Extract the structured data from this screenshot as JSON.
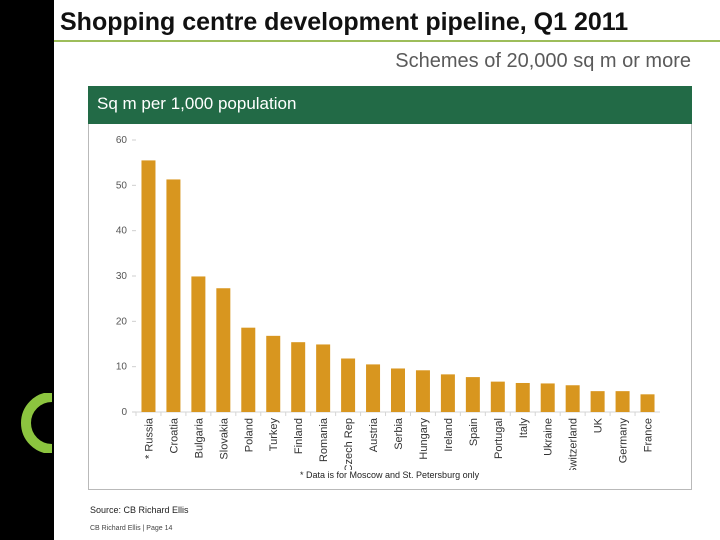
{
  "slide": {
    "title": "Shopping centre development pipeline, Q1 2011",
    "subtitle": "Schemes of 20,000 sq m or more",
    "source": "Source: CB Richard Ellis",
    "footer": "CB Richard Ellis | Page 14"
  },
  "colors": {
    "bar": "#d8961f",
    "header": "#226a46",
    "rule": "#9dbd5a",
    "ring": "#8cc43f"
  },
  "chart_data": {
    "type": "bar",
    "title": "Sq m per 1,000 population",
    "footnote": "* Data is for Moscow and St. Petersburg only",
    "categories": [
      "* Russia",
      "Croatia",
      "Bulgaria",
      "Slovakia",
      "Poland",
      "Turkey",
      "Finland",
      "Romania",
      "Czech Rep",
      "Austria",
      "Serbia",
      "Hungary",
      "Ireland",
      "Spain",
      "Portugal",
      "Italy",
      "Ukraine",
      "Switzerland",
      "UK",
      "Germany",
      "France"
    ],
    "values": [
      55.5,
      51.3,
      29.9,
      27.3,
      18.6,
      16.8,
      15.4,
      14.9,
      11.8,
      10.5,
      9.6,
      9.2,
      8.3,
      7.7,
      6.7,
      6.4,
      6.3,
      5.9,
      4.6,
      4.6,
      3.9
    ],
    "yticks": [
      "0",
      "10",
      "20",
      "30",
      "40",
      "50",
      "60"
    ],
    "ylim": [
      0,
      60
    ],
    "xlabel": "",
    "ylabel": ""
  }
}
